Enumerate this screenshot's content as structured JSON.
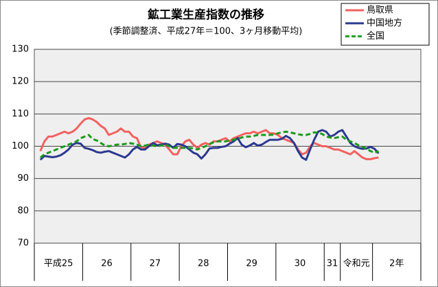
{
  "chart_data": {
    "type": "line",
    "title": "鉱工業生産指数の推移",
    "subtitle": "(季節調整済、平成27年＝100、3ヶ月移動平均)",
    "categories": [
      "平成25",
      null,
      null,
      null,
      null,
      null,
      null,
      null,
      null,
      null,
      null,
      null,
      "26",
      null,
      null,
      null,
      null,
      null,
      null,
      null,
      null,
      null,
      null,
      null,
      "27",
      null,
      null,
      null,
      null,
      null,
      null,
      null,
      null,
      null,
      null,
      null,
      "28",
      null,
      null,
      null,
      null,
      null,
      null,
      null,
      null,
      null,
      null,
      null,
      "29",
      null,
      null,
      null,
      null,
      null,
      null,
      null,
      null,
      null,
      null,
      null,
      "30",
      null,
      null,
      null,
      null,
      null,
      null,
      null,
      null,
      null,
      null,
      null,
      "31",
      null,
      null,
      null,
      "令和元",
      null,
      null,
      null,
      null,
      null,
      null,
      null,
      "2年",
      null,
      null,
      null,
      null,
      null,
      null,
      null,
      null,
      null,
      null,
      null
    ],
    "series": [
      {
        "name": "鳥取県",
        "color": "#f4605f",
        "style": "solid",
        "values": [
          null,
          98.5,
          101.5,
          103,
          103,
          103.5,
          104,
          104.5,
          104,
          104.5,
          105.5,
          107,
          108.3,
          108.7,
          108.3,
          107.5,
          106.3,
          105.5,
          103.5,
          104,
          104.5,
          105.5,
          104.5,
          104.5,
          103,
          102.5,
          99.5,
          99.5,
          100.5,
          101,
          101.5,
          101,
          100.5,
          99,
          97.5,
          97.5,
          100,
          101.5,
          102,
          100.5,
          99.5,
          100.5,
          101,
          100.5,
          101.5,
          101.5,
          102,
          102.5,
          101.5,
          102.5,
          103,
          103.5,
          104,
          104,
          104.5,
          104,
          104.5,
          105,
          104,
          104,
          103.5,
          102.5,
          102,
          101.5,
          101,
          99,
          97.5,
          98,
          100,
          101,
          100.5,
          100,
          100,
          99.5,
          99,
          99,
          98.5,
          98,
          97.5,
          98.5,
          97.5,
          96.5,
          96,
          96,
          96.3,
          96.5,
          null,
          null,
          null,
          null,
          null,
          null,
          null,
          null,
          null,
          null
        ]
      },
      {
        "name": "中国地方",
        "color": "#2b3990",
        "style": "solid",
        "values": [
          null,
          95.8,
          97,
          96.8,
          96.6,
          96.8,
          97.2,
          98,
          99,
          100.5,
          101,
          100.8,
          99.5,
          99.2,
          98.8,
          98.2,
          98,
          98.3,
          98.5,
          98,
          97.5,
          97,
          96.5,
          97.5,
          99,
          99.8,
          99,
          99,
          100,
          101,
          100.3,
          100.5,
          100.8,
          100.5,
          99.5,
          100.7,
          100.5,
          100,
          99,
          98,
          97.5,
          96.2,
          97.5,
          99.3,
          99.5,
          99.5,
          99.8,
          100,
          100.8,
          101.5,
          102.5,
          100.5,
          99.7,
          100.2,
          101,
          100.2,
          100.5,
          101.3,
          102,
          102,
          102,
          102.3,
          103.2,
          102.5,
          101,
          98.5,
          96.5,
          95.8,
          99,
          102,
          104.5,
          105,
          104.5,
          103,
          103.5,
          104.5,
          105,
          103,
          101,
          100,
          99.5,
          99.2,
          99.3,
          99.8,
          99.2,
          97.8,
          null,
          null,
          null,
          null,
          null,
          null,
          null,
          null,
          null,
          null
        ]
      },
      {
        "name": "全国",
        "color": "#1a9a1a",
        "style": "dashed",
        "values": [
          null,
          96.5,
          97.5,
          98,
          98.5,
          99,
          99.5,
          100,
          100.5,
          101,
          101.5,
          102.5,
          103,
          103.5,
          102.2,
          101.8,
          101,
          100.3,
          100,
          100.2,
          100.5,
          100.5,
          100.7,
          101,
          100.8,
          100.5,
          100,
          100.2,
          100.5,
          100.2,
          100,
          100.2,
          100.5,
          100,
          99.5,
          99.5,
          99.5,
          99.5,
          99.5,
          99.3,
          99,
          99.5,
          100,
          100.7,
          101.2,
          101.5,
          101.5,
          101.5,
          101.8,
          102,
          102.3,
          102.7,
          103,
          103,
          103.2,
          103.5,
          103.5,
          103.5,
          103.5,
          103.6,
          104,
          104.3,
          104.5,
          104.3,
          104,
          103.7,
          103.5,
          103.5,
          103.8,
          104.3,
          104.2,
          103.8,
          103,
          102.7,
          102.5,
          102.8,
          103,
          102,
          101.5,
          101,
          100.3,
          99.8,
          99.3,
          98.5,
          98,
          98.5,
          null,
          null,
          null,
          null,
          null,
          null,
          null,
          null,
          null,
          null
        ]
      }
    ],
    "ylim": [
      70,
      130
    ],
    "yticks": [
      70,
      80,
      90,
      100,
      110,
      120,
      130
    ],
    "grid": true,
    "legend": "top-right"
  }
}
